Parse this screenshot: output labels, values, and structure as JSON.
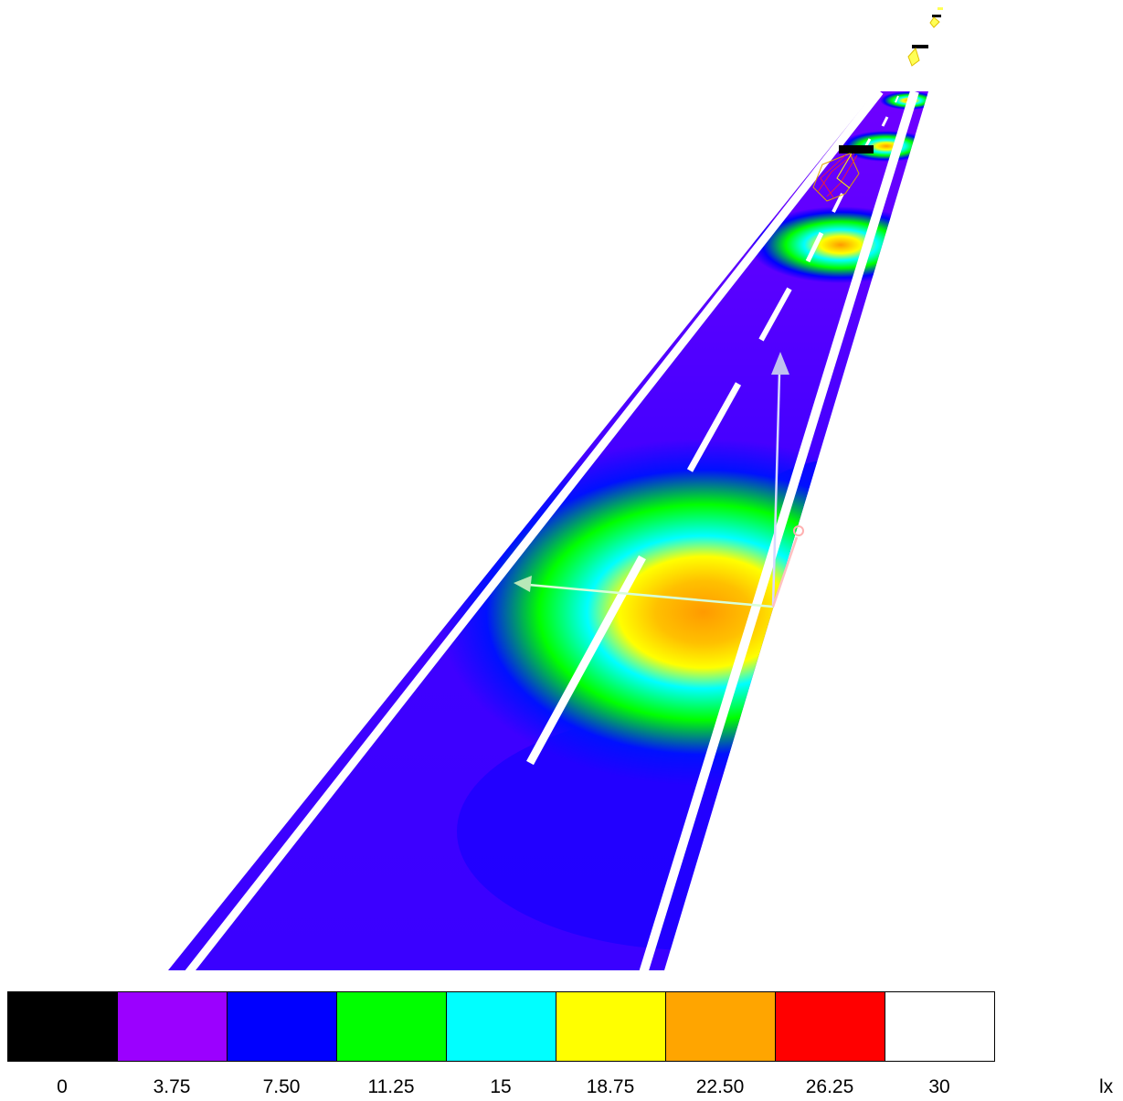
{
  "legend": {
    "unit": "lx",
    "colors": [
      "#000000",
      "#9b00ff",
      "#0000ff",
      "#00ff00",
      "#00ffff",
      "#ffff00",
      "#ffa500",
      "#ff0000",
      "#ffffff"
    ],
    "ticks": [
      "0",
      "3.75",
      "7.50",
      "11.25",
      "15",
      "18.75",
      "22.50",
      "26.25",
      "30"
    ]
  },
  "scene": {
    "road_base_color": "#6a00ff",
    "lane_marking_color": "#ffffff",
    "axis_colors": {
      "x": "#c9ffc9",
      "y": "#c8c8ff",
      "z": "#ffb0b0"
    }
  }
}
